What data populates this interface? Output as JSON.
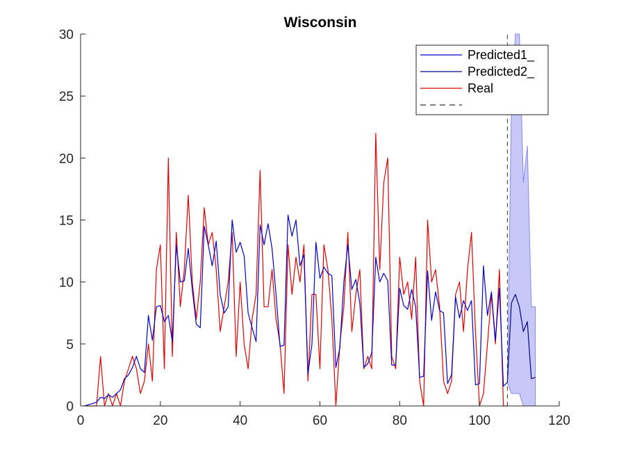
{
  "chart_data": {
    "type": "line",
    "title": "Wisconsin",
    "xlabel": "",
    "ylabel": "",
    "xlim": [
      0,
      120
    ],
    "ylim": [
      0,
      30
    ],
    "xticks": [
      0,
      20,
      40,
      60,
      80,
      100,
      120
    ],
    "yticks": [
      0,
      5,
      10,
      15,
      20,
      25,
      30
    ],
    "grid": false,
    "legend_position": "top-right",
    "prediction_start": 107,
    "colors": {
      "predicted1": "#0000cc",
      "predicted2": "#00008b",
      "real": "#e00000",
      "band": "#c8c8f8",
      "band_edge": "#8888ee",
      "divider": "#333333",
      "axis": "#262626"
    },
    "series": [
      {
        "name": "Predicted1_",
        "color": "#0000cc",
        "x": [
          1,
          2,
          3,
          4,
          5,
          6,
          7,
          8,
          9,
          10,
          11,
          12,
          13,
          14,
          15,
          16,
          17,
          18,
          19,
          20,
          21,
          22,
          23,
          24,
          25,
          26,
          27,
          28,
          29,
          30,
          31,
          32,
          33,
          34,
          35,
          36,
          37,
          38,
          39,
          40,
          41,
          42,
          43,
          44,
          45,
          46,
          47,
          48,
          49,
          50,
          51,
          52,
          53,
          54,
          55,
          56,
          57,
          58,
          59,
          60,
          61,
          62,
          63,
          64,
          65,
          66,
          67,
          68,
          69,
          70,
          71,
          72,
          73,
          74,
          75,
          76,
          77,
          78,
          79,
          80,
          81,
          82,
          83,
          84,
          85,
          86,
          87,
          88,
          89,
          90,
          91,
          92,
          93,
          94,
          95,
          96,
          97,
          98,
          99,
          100,
          101,
          102,
          103,
          104,
          105,
          106,
          107
        ],
        "values": [
          0,
          0.1,
          0.2,
          0.3,
          0.7,
          0.6,
          0.9,
          0.7,
          1,
          1.3,
          2.2,
          2.5,
          3.1,
          4,
          3,
          2.7,
          7.3,
          5.3,
          8,
          8.1,
          6.8,
          7.3,
          5.2,
          13,
          10,
          10.1,
          12.7,
          9.4,
          6.6,
          6.3,
          14.5,
          13,
          11.3,
          13.3,
          9,
          7.5,
          8,
          15,
          12.4,
          13.2,
          12.1,
          7.5,
          6.3,
          5.2,
          14.6,
          13,
          14.7,
          12.7,
          9,
          4.8,
          4.9,
          15.4,
          13.7,
          15,
          11.3,
          12.2,
          2.6,
          5,
          13.2,
          10.3,
          11.2,
          10.7,
          10.5,
          3.1,
          4.7,
          10,
          13,
          9.4,
          10.2,
          8.3,
          3.1,
          3.4,
          4.3,
          12,
          10,
          10.7,
          10.1,
          3.3,
          3.3,
          9.5,
          8.1,
          7.8,
          9.4,
          8,
          2.3,
          2.4,
          10.9,
          6.9,
          9.2,
          7.7,
          7.5,
          1.8,
          2.5,
          8.8,
          7.1,
          8.5,
          7.7,
          8.5,
          1.7,
          1.8,
          11.3,
          7.3,
          9.2,
          5.3,
          9.5,
          1.6,
          1.9
        ]
      },
      {
        "name": "Predicted2_",
        "color": "#00008b",
        "x": [
          107,
          108,
          109,
          110,
          111,
          112,
          113,
          114
        ],
        "values": [
          1.9,
          8.3,
          9,
          8,
          6,
          6.8,
          2.2,
          2.3
        ]
      },
      {
        "name": "Real",
        "color": "#e00000",
        "x": [
          1,
          2,
          3,
          4,
          5,
          6,
          7,
          8,
          9,
          10,
          11,
          12,
          13,
          14,
          15,
          16,
          17,
          18,
          19,
          20,
          21,
          22,
          23,
          24,
          25,
          26,
          27,
          28,
          29,
          30,
          31,
          32,
          33,
          34,
          35,
          36,
          37,
          38,
          39,
          40,
          41,
          42,
          43,
          44,
          45,
          46,
          47,
          48,
          49,
          50,
          51,
          52,
          53,
          54,
          55,
          56,
          57,
          58,
          59,
          60,
          61,
          62,
          63,
          64,
          65,
          66,
          67,
          68,
          69,
          70,
          71,
          72,
          73,
          74,
          75,
          76,
          77,
          78,
          79,
          80,
          81,
          82,
          83,
          84,
          85,
          86,
          87,
          88,
          89,
          90,
          91,
          92,
          93,
          94,
          95,
          96,
          97,
          98,
          99,
          100,
          101,
          102,
          103,
          104,
          105,
          106,
          107
        ],
        "values": [
          0,
          0,
          0,
          0,
          4,
          0,
          1,
          0,
          1,
          0,
          2,
          3,
          4,
          3,
          1,
          2,
          5,
          2,
          11,
          13,
          3,
          20,
          4,
          14,
          8,
          11,
          17,
          10,
          7,
          10,
          16,
          13,
          14,
          11,
          6,
          8,
          10,
          14,
          4,
          10,
          5,
          3,
          7,
          9,
          19,
          8,
          8,
          11,
          7,
          5,
          1,
          13,
          9,
          12,
          10,
          13,
          2,
          9,
          9,
          3,
          13,
          11,
          7,
          0,
          5,
          8,
          14,
          6,
          9,
          11,
          3,
          4,
          3,
          22,
          11,
          18,
          20,
          4,
          3,
          12,
          9,
          10,
          7,
          12,
          2,
          0,
          15,
          10,
          11,
          8,
          2,
          1,
          2,
          9,
          10,
          6,
          11,
          14,
          6,
          0,
          1,
          5,
          9,
          5,
          11,
          0,
          0
        ]
      },
      {
        "name": "",
        "style": "dashed",
        "color": "#333333",
        "x": [
          107,
          107
        ],
        "values": [
          0,
          30
        ]
      }
    ],
    "confidence_band": {
      "x": [
        107,
        108,
        109,
        110,
        111,
        112,
        113,
        114
      ],
      "lower": [
        1.9,
        1,
        1,
        1,
        0,
        0,
        0,
        0
      ],
      "upper": [
        1.9,
        24,
        30,
        30,
        18,
        21,
        8,
        8
      ]
    }
  }
}
